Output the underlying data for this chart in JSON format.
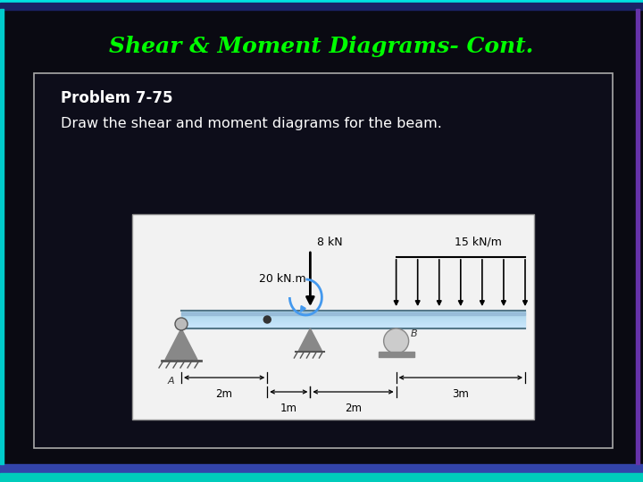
{
  "bg_color": "#0a0a12",
  "title": "Shear & Moment Diagrams- Cont.",
  "title_color": "#00ff00",
  "title_fontsize": 18,
  "box_bg": "#0d0d1a",
  "box_edge_color": "#cccccc",
  "problem_label": "Problem 7-75",
  "problem_desc": "Draw the shear and moment diagrams for the beam.",
  "problem_color": "#ffffff",
  "problem_fontsize": 12,
  "top_bar_color": "#00e8e8",
  "top_bar2_color": "#2244aa",
  "bottom_bar1_color": "#3344aa",
  "bottom_bar2_color": "#7788cc",
  "bottom_teal_color": "#00ddcc",
  "left_bar_color": "#00cccc",
  "right_bar_color": "#6633aa",
  "inner_box_bg": "#f0f0f0",
  "beam_color": "#aad4e8",
  "beam_top_color": "#88b8cc"
}
